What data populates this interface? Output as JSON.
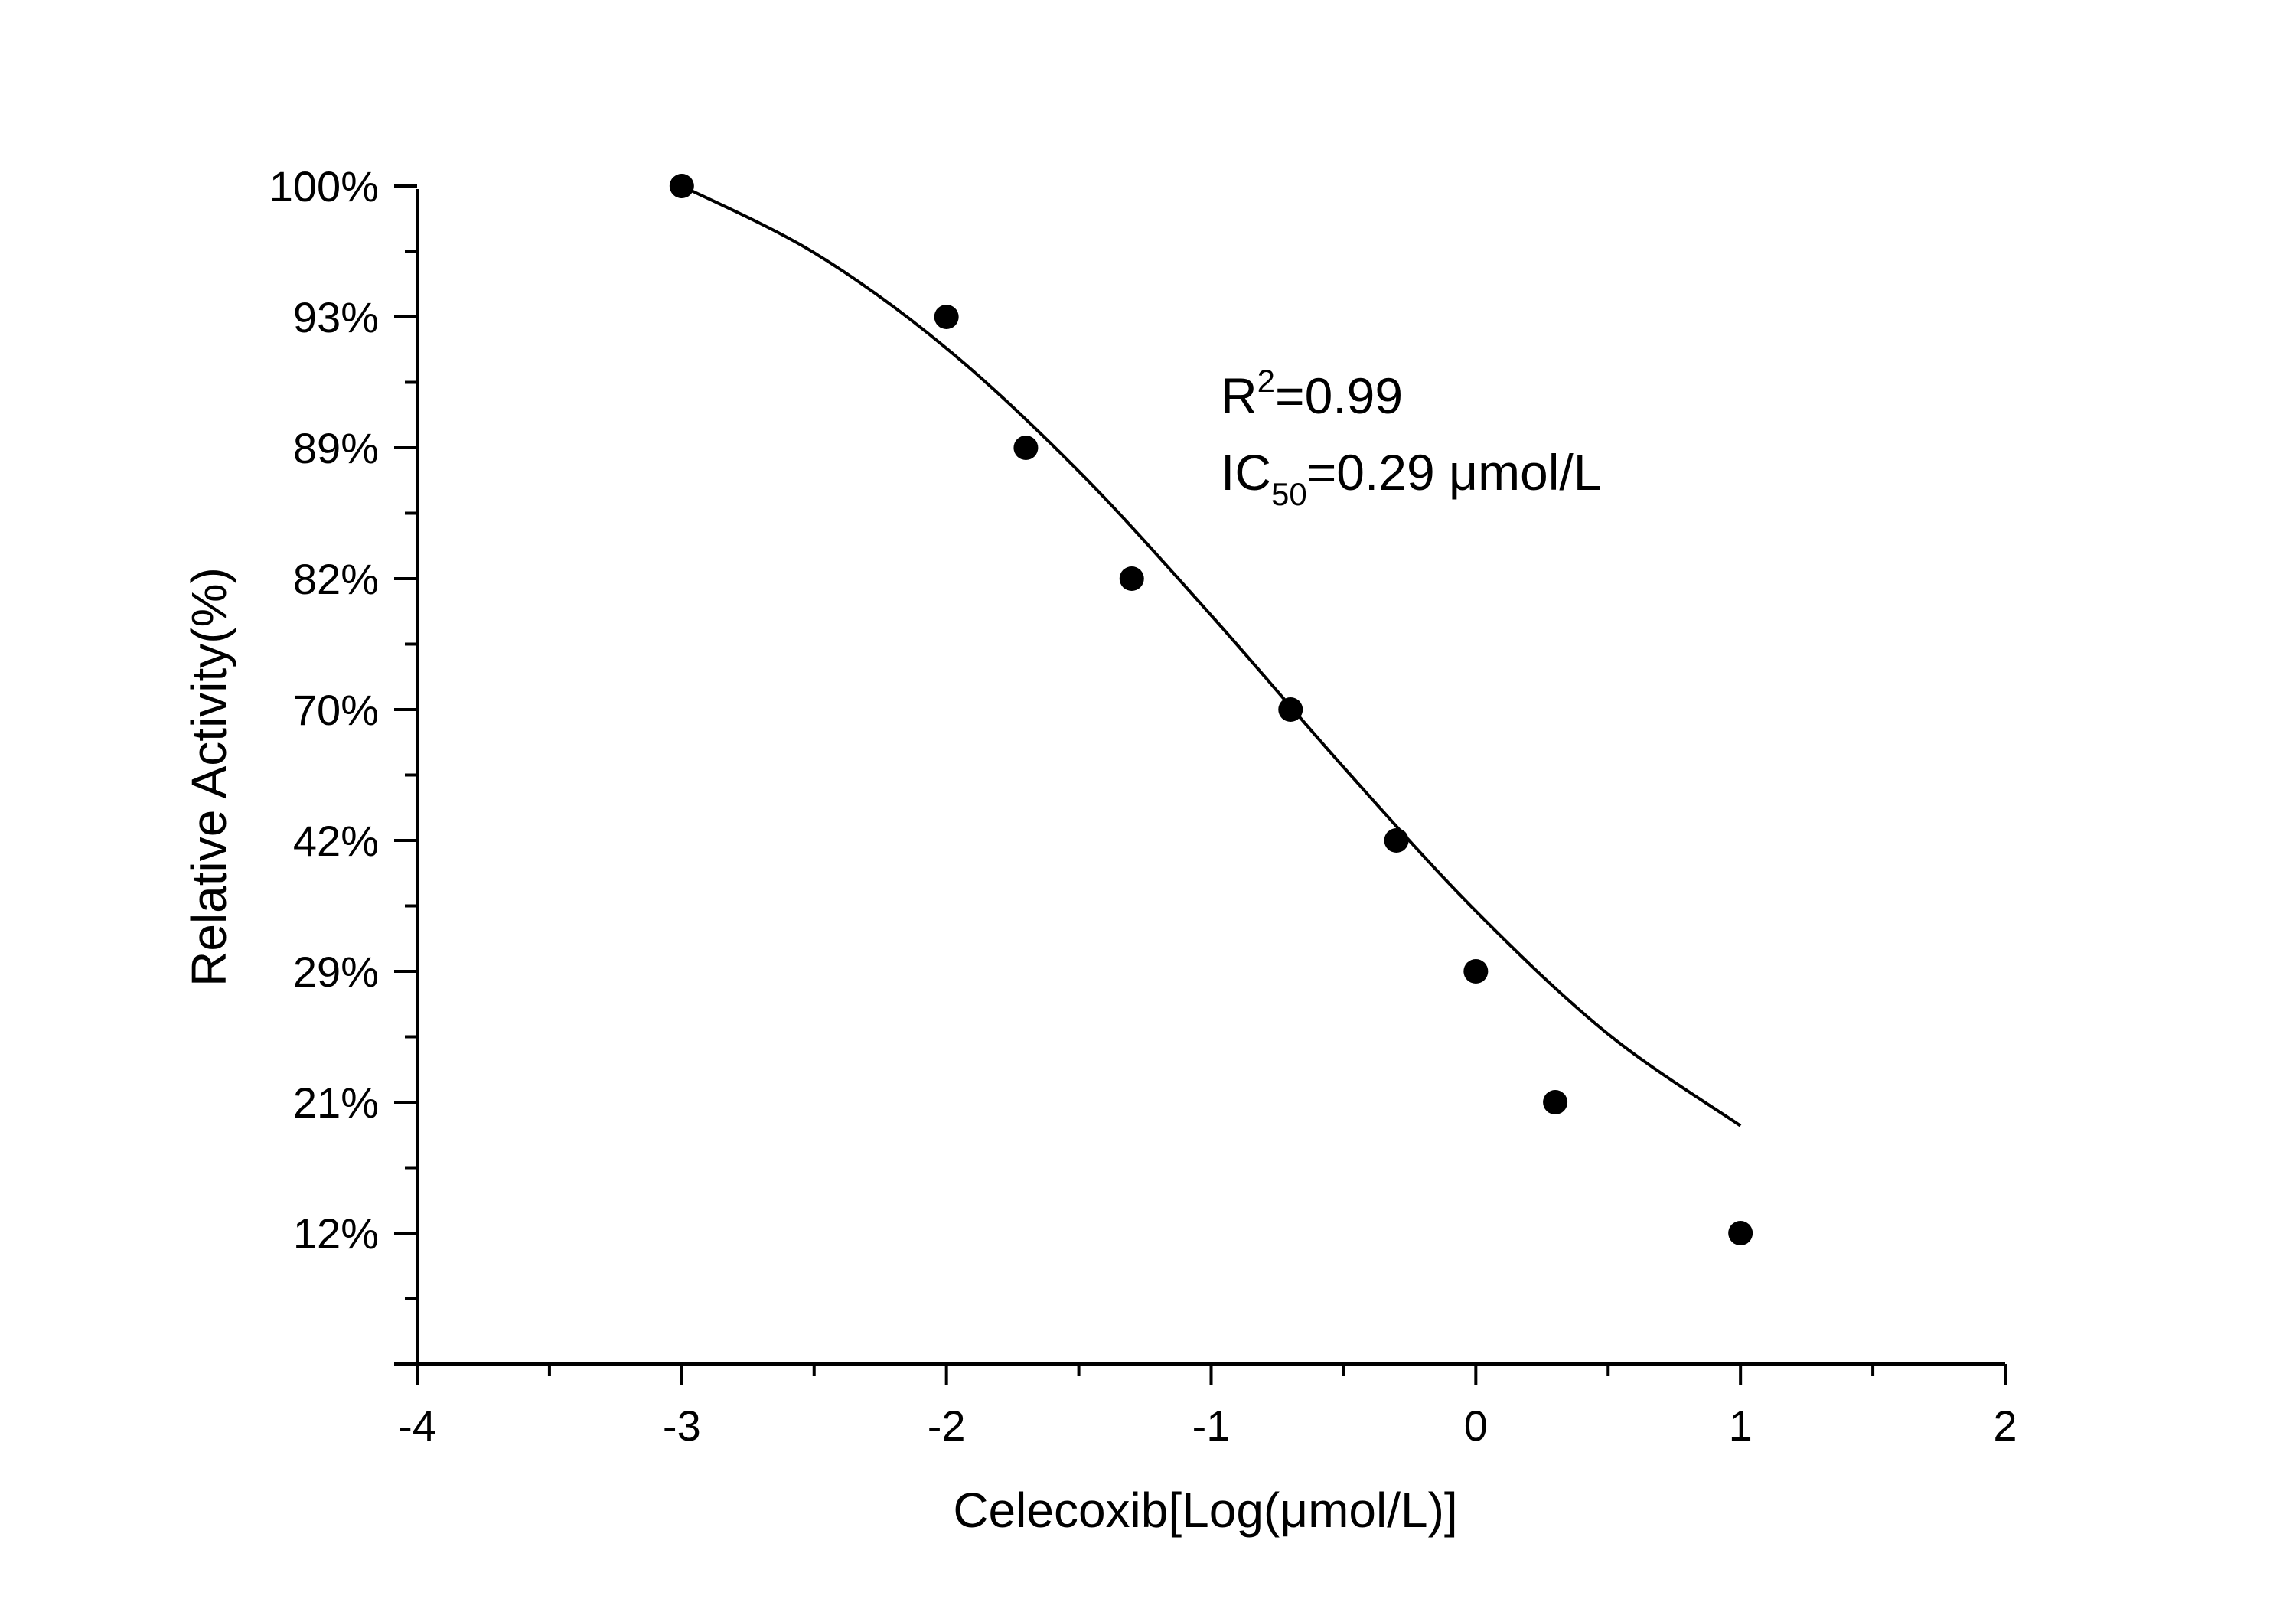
{
  "chart_data": {
    "type": "scatter",
    "title": "",
    "xlabel": "Celecoxib[Log(μmol/L)]",
    "ylabel": "Relative Activity(%)",
    "xlim": [
      -4,
      2
    ],
    "x_ticks": [
      -4,
      -3,
      -2,
      -1,
      0,
      1,
      2
    ],
    "x_tick_labels": [
      "-4",
      "-3",
      "-2",
      "-1",
      "0",
      "1",
      "2"
    ],
    "y_tick_labels": [
      "12%",
      "21%",
      "29%",
      "42%",
      "70%",
      "82%",
      "89%",
      "93%",
      "100%"
    ],
    "y_scale": "categorical-ticks",
    "points": [
      {
        "x": -3,
        "y": "100%"
      },
      {
        "x": -2,
        "y": "93%"
      },
      {
        "x": -1.7,
        "y": "89%"
      },
      {
        "x": -1.3,
        "y": "82%"
      },
      {
        "x": -0.7,
        "y": "70%"
      },
      {
        "x": -0.3,
        "y": "42%"
      },
      {
        "x": 0,
        "y": "29%"
      },
      {
        "x": 0.3,
        "y": "21%"
      },
      {
        "x": 1,
        "y": "12%"
      }
    ],
    "fit_curve": {
      "type": "sigmoid",
      "x": [
        -3,
        -2.5,
        -2,
        -1.5,
        -1,
        -0.5,
        0,
        0.5,
        1
      ],
      "y_rank": [
        8,
        7.49,
        6.76,
        5.82,
        4.72,
        3.56,
        2.46,
        1.52,
        0.82
      ]
    },
    "annotations": [
      {
        "base": "R",
        "sup": "2",
        "text": "=0.99"
      },
      {
        "base": "IC",
        "sub": "50",
        "text": "=0.29 μmol/L"
      }
    ],
    "grid": false,
    "legend": "none"
  }
}
